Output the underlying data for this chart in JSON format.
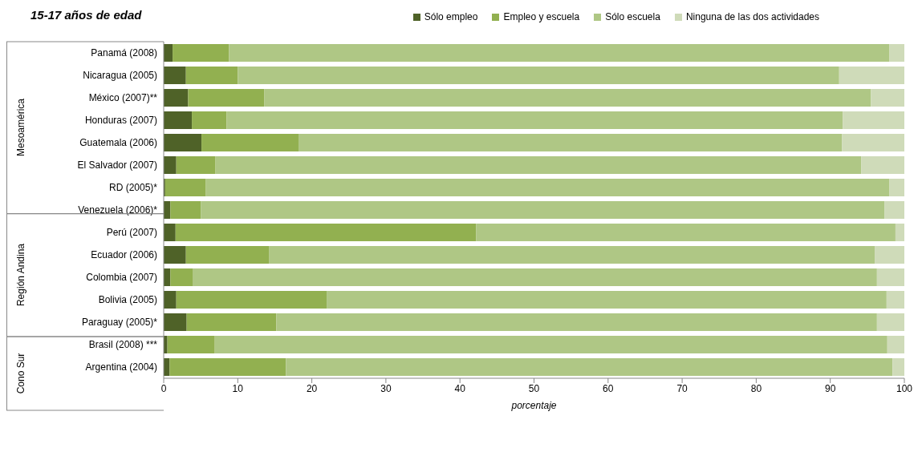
{
  "chart_data": {
    "type": "bar",
    "orientation": "horizontal",
    "stacked": true,
    "title": "15-17 años de edad",
    "xlabel": "porcentaje",
    "categories": [
      "Panamá (2008)",
      "Nicaragua (2005)",
      "México (2007)**",
      "Honduras (2007)",
      "Guatemala (2006)",
      "El Salvador (2007)",
      "RD (2005)*",
      "Venezuela (2006)*",
      "Perú (2007)",
      "Ecuador (2006)",
      "Colombia (2007)",
      "Bolivia (2005)",
      "Paraguay (2005)*",
      "Brasil (2008) ***",
      "Argentina (2004)"
    ],
    "series": [
      {
        "name": "Sólo empleo",
        "color": "#4f6228",
        "values": [
          1.2,
          3.0,
          3.3,
          3.8,
          5.1,
          1.7,
          0.2,
          0.9,
          1.6,
          3.0,
          0.9,
          1.7,
          3.1,
          0.5,
          0.8
        ]
      },
      {
        "name": "Empleo y escuela",
        "color": "#92b050",
        "values": [
          7.6,
          7.0,
          10.3,
          4.7,
          13.1,
          5.3,
          5.5,
          4.1,
          40.6,
          11.2,
          3.0,
          20.3,
          12.1,
          6.4,
          15.7
        ]
      },
      {
        "name": "Sólo escuela",
        "color": "#afc785",
        "values": [
          89.2,
          81.2,
          81.9,
          83.2,
          73.4,
          87.2,
          92.3,
          92.3,
          56.6,
          81.8,
          92.4,
          75.6,
          81.1,
          90.8,
          81.9
        ]
      },
      {
        "name": "Ninguna de las dos actividades",
        "color": "#cfdbb9",
        "values": [
          2.0,
          8.8,
          4.5,
          8.3,
          8.4,
          5.8,
          2.0,
          2.7,
          1.2,
          4.0,
          3.7,
          2.4,
          3.7,
          2.3,
          1.6
        ]
      }
    ],
    "annotations": [
      "Mesoamérica",
      "Región Andina",
      "Cono Sur"
    ],
    "xlim": [
      0,
      100
    ],
    "xticks": [
      0,
      10,
      20,
      30,
      40,
      50,
      60,
      70,
      80,
      90,
      100
    ],
    "legend": "top right"
  }
}
